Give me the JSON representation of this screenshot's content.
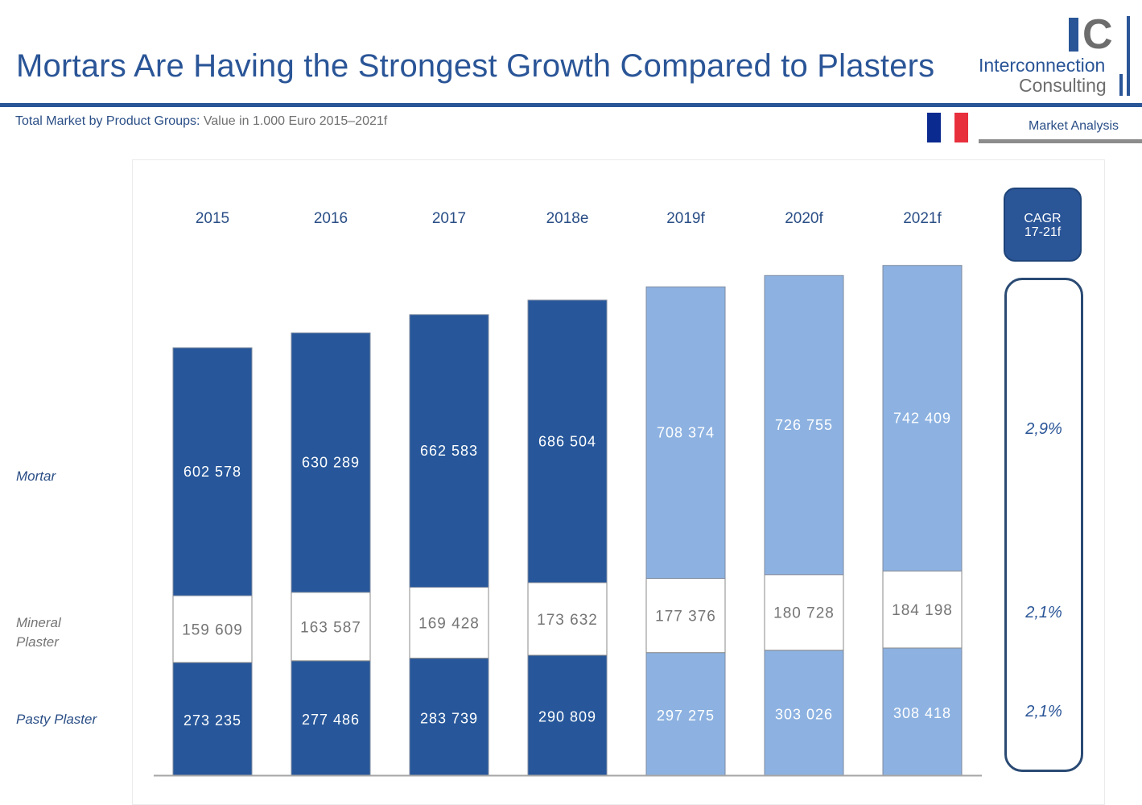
{
  "header": {
    "title": "Mortars Are Having the Strongest Growth Compared to Plasters",
    "subtitle_bold": "Total Market by Product Groups:",
    "subtitle_light": " Value in 1.000 Euro 2015–2021f",
    "logo_mark_i": "I",
    "logo_mark_c": "C",
    "logo_line1": "Interconnection",
    "logo_line2": "Consulting",
    "section_label": "Market Analysis",
    "flag_colors": [
      "#002395",
      "#ffffff",
      "#ed2939"
    ]
  },
  "row_labels": {
    "mortar": "Mortar",
    "mineral_line1": "Mineral",
    "mineral_line2": "Plaster",
    "pasty": "Pasty Plaster"
  },
  "cagr": {
    "header_line1": "CAGR",
    "header_line2": "17-21f",
    "mortar": "2,9%",
    "mineral": "2,1%",
    "pasty": "2,1%"
  },
  "colors": {
    "actual": "#27579a",
    "forecast": "#8db2e1",
    "mineral": "#ffffff",
    "label_dark": "#2a4e86",
    "label_gray": "#757575"
  },
  "chart_data": {
    "type": "bar",
    "stacked": true,
    "title": "Total Market by Product Groups: Value in 1.000 Euro 2015–2021f",
    "xlabel": "",
    "ylabel": "",
    "categories": [
      "2015",
      "2016",
      "2017",
      "2018e",
      "2019f",
      "2020f",
      "2021f"
    ],
    "forecast_from_index": 4,
    "series": [
      {
        "name": "Pasty Plaster",
        "labels": [
          "273 235",
          "277 486",
          "283 739",
          "290 809",
          "297 275",
          "303 026",
          "308 418"
        ],
        "values": [
          273235,
          277486,
          283739,
          290809,
          297275,
          303026,
          308418
        ]
      },
      {
        "name": "Mineral Plaster",
        "labels": [
          "159 609",
          "163 587",
          "169 428",
          "173 632",
          "177 376",
          "180 728",
          "184 198"
        ],
        "values": [
          159609,
          163587,
          169428,
          173632,
          177376,
          180728,
          184198
        ]
      },
      {
        "name": "Mortar",
        "labels": [
          "602 578",
          "630 289",
          "662 583",
          "686 504",
          "708 374",
          "726 755",
          "742 409"
        ],
        "values": [
          602578,
          630289,
          662583,
          686504,
          708374,
          726755,
          742409
        ]
      }
    ],
    "cagr_17_21f": {
      "Mortar": "2,9%",
      "Mineral Plaster": "2,1%",
      "Pasty Plaster": "2,1%"
    },
    "grid": false,
    "legend": "left row labels"
  }
}
